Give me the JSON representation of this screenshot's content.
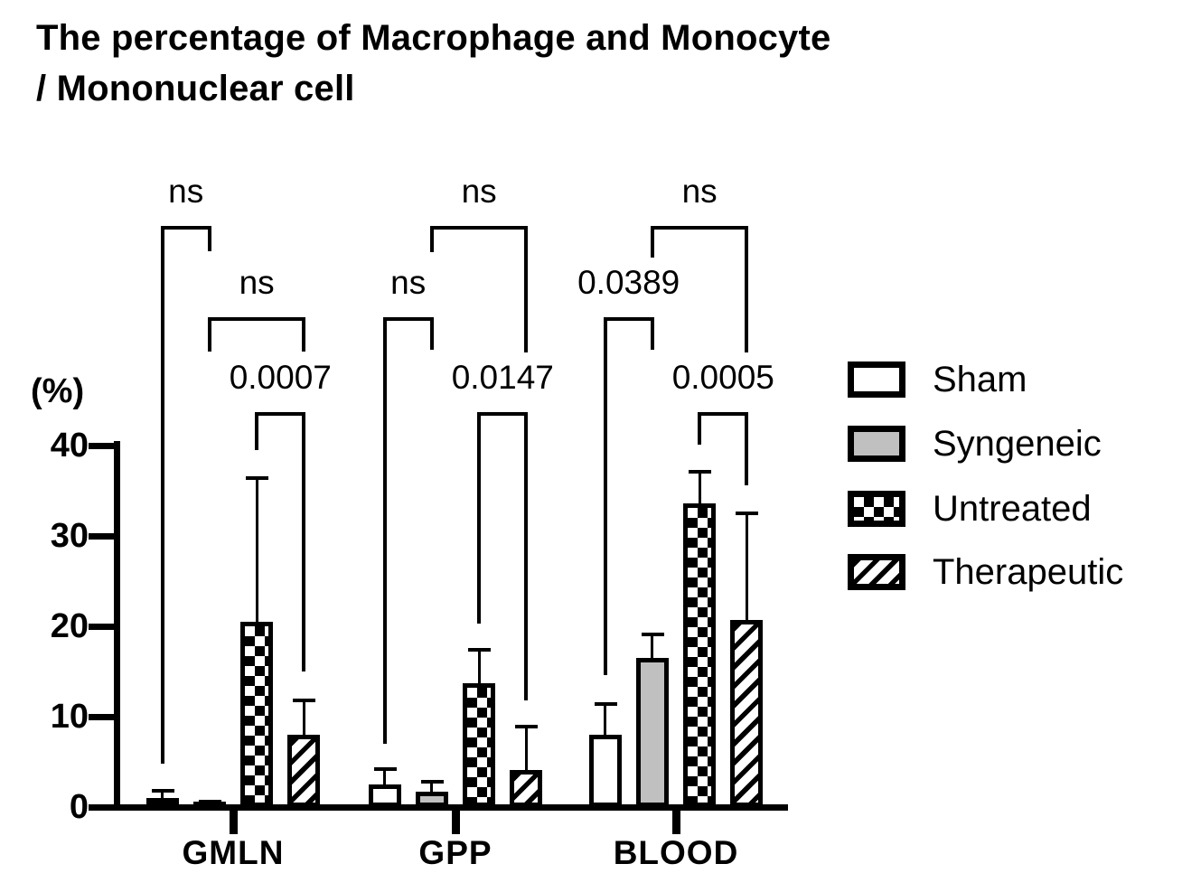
{
  "figure": {
    "title_line1": "The percentage of Macrophage and Monocyte",
    "title_line2": "/ Mononuclear cell",
    "y_axis_unit": "(%)"
  },
  "legend": {
    "position": "right",
    "items": [
      {
        "label": "Sham",
        "pattern": "white"
      },
      {
        "label": "Syngeneic",
        "pattern": "gray",
        "color": "#c0c0c0"
      },
      {
        "label": "Untreated",
        "pattern": "checker"
      },
      {
        "label": "Therapeutic",
        "pattern": "stripes"
      }
    ]
  },
  "chart_data": {
    "type": "bar",
    "title": "The percentage of Macrophage and Monocyte / Mononuclear cell",
    "categories": [
      "GMLN",
      "GPP",
      "BLOOD"
    ],
    "series": [
      {
        "name": "Sham",
        "pattern": "white",
        "values": [
          1.0,
          2.5,
          8.0
        ],
        "sd_upper": [
          1.0,
          1.9,
          3.6
        ]
      },
      {
        "name": "Syngeneic",
        "pattern": "gray",
        "color": "#c0c0c0",
        "values": [
          0.3,
          1.7,
          16.5
        ],
        "sd_upper": [
          0.5,
          1.3,
          2.8
        ]
      },
      {
        "name": "Untreated",
        "pattern": "checker",
        "values": [
          20.5,
          13.7,
          33.6
        ],
        "sd_upper": [
          16.1,
          3.9,
          3.7
        ]
      },
      {
        "name": "Therapeutic",
        "pattern": "stripes",
        "values": [
          8.0,
          4.1,
          20.7
        ],
        "sd_upper": [
          4.0,
          5.0,
          12.0
        ]
      }
    ],
    "xlabel": "",
    "ylabel": "(%)",
    "ylim": [
      0,
      40
    ],
    "yticks": [
      0,
      10,
      20,
      30,
      40
    ],
    "grid": false,
    "error_bars": "sd-upper-only",
    "legend_position": "right",
    "significance": [
      {
        "category": "GMLN",
        "between": [
          "Sham",
          "Syngeneic"
        ],
        "label": "ns"
      },
      {
        "category": "GMLN",
        "between": [
          "Syngeneic",
          "Therapeutic"
        ],
        "label": "ns"
      },
      {
        "category": "GMLN",
        "between": [
          "Untreated",
          "Therapeutic"
        ],
        "label": "0.0007"
      },
      {
        "category": "GPP",
        "between": [
          "Sham",
          "Syngeneic"
        ],
        "label": "ns"
      },
      {
        "category": "GPP",
        "between": [
          "Syngeneic",
          "Therapeutic"
        ],
        "label": "ns"
      },
      {
        "category": "GPP",
        "between": [
          "Untreated",
          "Therapeutic"
        ],
        "label": "0.0147"
      },
      {
        "category": "BLOOD",
        "between": [
          "Sham",
          "Syngeneic"
        ],
        "label": "0.0389"
      },
      {
        "category": "BLOOD",
        "between": [
          "Syngeneic",
          "Therapeutic"
        ],
        "label": "ns"
      },
      {
        "category": "BLOOD",
        "between": [
          "Untreated",
          "Therapeutic"
        ],
        "label": "0.0005"
      }
    ]
  }
}
